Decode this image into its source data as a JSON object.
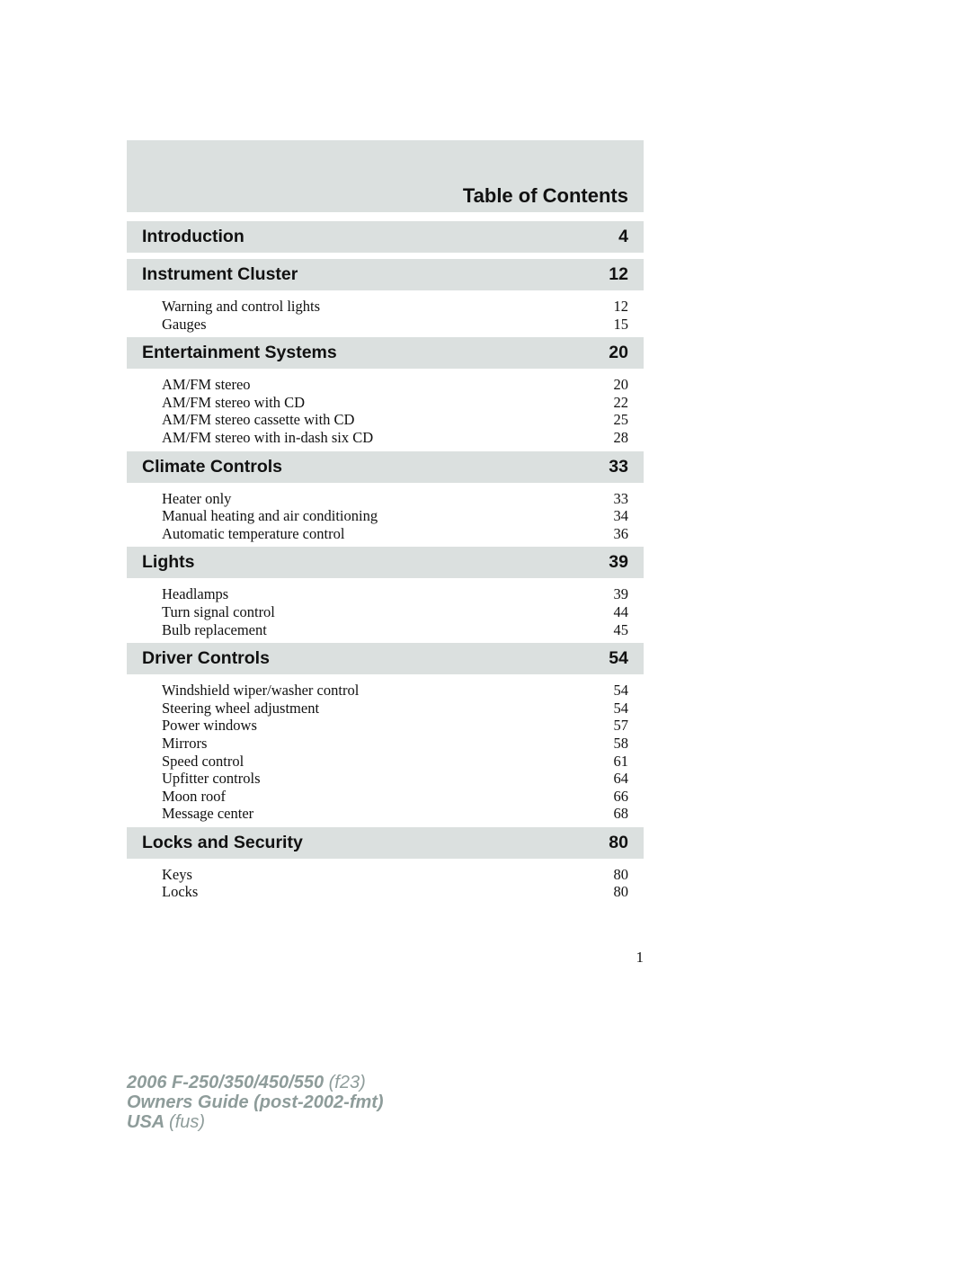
{
  "title": "Table of Contents",
  "sections": [
    {
      "label": "Introduction",
      "page": "4",
      "items": []
    },
    {
      "label": "Instrument Cluster",
      "page": "12",
      "items": [
        {
          "label": "Warning and control lights",
          "page": "12"
        },
        {
          "label": "Gauges",
          "page": "15"
        }
      ]
    },
    {
      "label": "Entertainment Systems",
      "page": "20",
      "items": [
        {
          "label": "AM/FM stereo",
          "page": "20"
        },
        {
          "label": "AM/FM stereo with CD",
          "page": "22"
        },
        {
          "label": "AM/FM stereo cassette with CD",
          "page": "25"
        },
        {
          "label": "AM/FM stereo with in-dash six CD",
          "page": "28"
        }
      ]
    },
    {
      "label": "Climate Controls",
      "page": "33",
      "items": [
        {
          "label": "Heater only",
          "page": "33"
        },
        {
          "label": "Manual heating and air conditioning",
          "page": "34"
        },
        {
          "label": "Automatic temperature control",
          "page": "36"
        }
      ]
    },
    {
      "label": "Lights",
      "page": "39",
      "items": [
        {
          "label": "Headlamps",
          "page": "39"
        },
        {
          "label": "Turn signal control",
          "page": "44"
        },
        {
          "label": "Bulb replacement",
          "page": "45"
        }
      ]
    },
    {
      "label": "Driver Controls",
      "page": "54",
      "items": [
        {
          "label": "Windshield wiper/washer control",
          "page": "54"
        },
        {
          "label": "Steering wheel adjustment",
          "page": "54"
        },
        {
          "label": "Power windows",
          "page": "57"
        },
        {
          "label": "Mirrors",
          "page": "58"
        },
        {
          "label": "Speed control",
          "page": "61"
        },
        {
          "label": "Upfitter controls",
          "page": "64"
        },
        {
          "label": "Moon roof",
          "page": "66"
        },
        {
          "label": "Message center",
          "page": "68"
        }
      ]
    },
    {
      "label": "Locks and Security",
      "page": "80",
      "items": [
        {
          "label": "Keys",
          "page": "80"
        },
        {
          "label": "Locks",
          "page": "80"
        }
      ]
    }
  ],
  "page_number": "1",
  "footer": {
    "line1_bold": "2006 F-250/350/450/550",
    "line1_normal": "(f23)",
    "line2_bold": "Owners Guide (post-2002-fmt)",
    "line3_bold": "USA",
    "line3_normal": "(fus)"
  },
  "colors": {
    "bar": "#dbe0df",
    "footer_text": "#8e9c9a"
  }
}
